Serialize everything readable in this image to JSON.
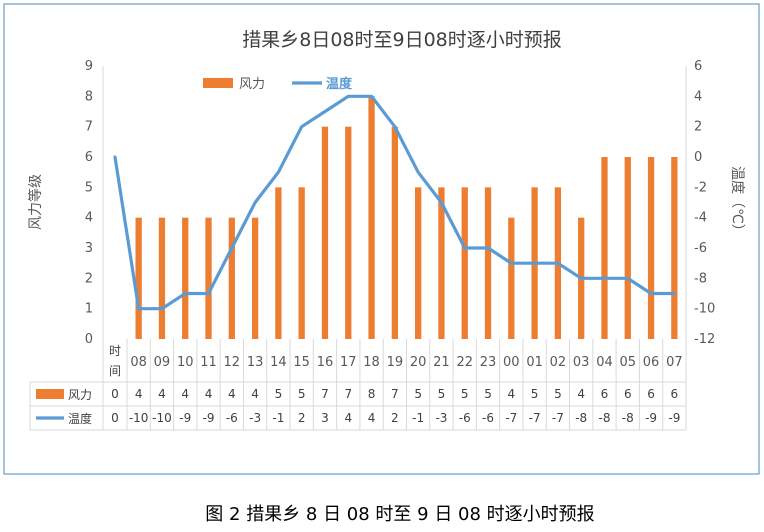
{
  "chart_data": {
    "type": "bar",
    "title": "措果乡8日08时至9日08时逐小时预报",
    "caption": "图 2 措果乡 8 日 08 时至 9 日 08 时逐小时预报",
    "table_corner_label": "时间",
    "categories": [
      "08",
      "09",
      "10",
      "11",
      "12",
      "13",
      "14",
      "15",
      "16",
      "17",
      "18",
      "19",
      "20",
      "21",
      "22",
      "23",
      "00",
      "01",
      "02",
      "03",
      "04",
      "05",
      "06",
      "07"
    ],
    "series": [
      {
        "name": "风力",
        "type": "bar",
        "axis": "left",
        "color": "#ED7D31",
        "table_first": 0,
        "values": [
          4,
          4,
          4,
          4,
          4,
          4,
          5,
          5,
          7,
          7,
          8,
          7,
          5,
          5,
          5,
          5,
          4,
          5,
          5,
          4,
          6,
          6,
          6,
          6
        ]
      },
      {
        "name": "温度",
        "type": "line",
        "axis": "right",
        "color": "#5B9BD5",
        "first_point": 0,
        "table_first": 0,
        "values": [
          -10,
          -10,
          -9,
          -9,
          -6,
          -3,
          -1,
          2,
          3,
          4,
          4,
          2,
          -1,
          -3,
          -6,
          -6,
          -7,
          -7,
          -7,
          -8,
          -8,
          -8,
          -9,
          -9
        ]
      }
    ],
    "ylabel": "风力等级",
    "ylim": [
      0,
      9
    ],
    "yticks": [
      0,
      1,
      2,
      3,
      4,
      5,
      6,
      7,
      8,
      9
    ],
    "y2label": "温度（℃）",
    "y2lim": [
      -12,
      6
    ],
    "y2ticks": [
      -12,
      -10,
      -8,
      -6,
      -4,
      -2,
      0,
      2,
      4,
      6
    ],
    "legend_position": "top-left",
    "grid": false
  }
}
